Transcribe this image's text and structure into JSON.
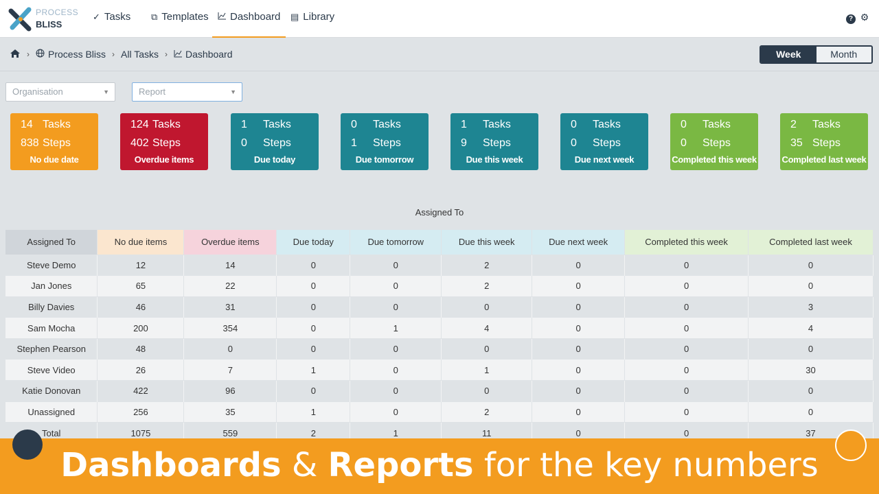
{
  "nav": {
    "logo": {
      "line1": "PROCESS",
      "line2": "BLISS"
    },
    "items": [
      {
        "icon": "checkmark-icon",
        "glyph": "✓",
        "label": "Tasks"
      },
      {
        "icon": "external-link-icon",
        "glyph": "⧉",
        "label": "Templates"
      },
      {
        "icon": "line-chart-icon",
        "glyph": "📈",
        "label": "Dashboard"
      },
      {
        "icon": "document-icon",
        "glyph": "▤",
        "label": "Library"
      }
    ]
  },
  "breadcrumb": [
    "Process Bliss",
    "All Tasks",
    "Dashboard"
  ],
  "period_toggle": {
    "week": "Week",
    "month": "Month",
    "selected": "Week"
  },
  "filters": {
    "organisation": "Organisation",
    "report": "Report"
  },
  "tiles": [
    {
      "tasks": "14",
      "steps": "838",
      "tasks_label": "Tasks",
      "steps_label": "Steps",
      "label": "No due date",
      "color": "#f39c1f"
    },
    {
      "tasks": "124",
      "steps": "402",
      "tasks_label": "Tasks",
      "steps_label": "Steps",
      "label": "Overdue items",
      "color": "#c0172f"
    },
    {
      "tasks": "1",
      "steps": "0",
      "tasks_label": "Tasks",
      "steps_label": "Steps",
      "label": "Due today",
      "color": "#1e8592"
    },
    {
      "tasks": "0",
      "steps": "1",
      "tasks_label": "Tasks",
      "steps_label": "Steps",
      "label": "Due tomorrow",
      "color": "#1e8592"
    },
    {
      "tasks": "1",
      "steps": "9",
      "tasks_label": "Tasks",
      "steps_label": "Steps",
      "label": "Due this week",
      "color": "#1e8592"
    },
    {
      "tasks": "0",
      "steps": "0",
      "tasks_label": "Tasks",
      "steps_label": "Steps",
      "label": "Due next week",
      "color": "#1e8592"
    },
    {
      "tasks": "0",
      "steps": "0",
      "tasks_label": "Tasks",
      "steps_label": "Steps",
      "label": "Completed this week",
      "color": "#7ab843"
    },
    {
      "tasks": "2",
      "steps": "35",
      "tasks_label": "Tasks",
      "steps_label": "Steps",
      "label": "Completed last week",
      "color": "#7ab843"
    }
  ],
  "table": {
    "title": "Assigned To",
    "columns": [
      {
        "label": "Assigned To",
        "bg": "#d0d5da"
      },
      {
        "label": "No due items",
        "bg": "#fbe6cf"
      },
      {
        "label": "Overdue items",
        "bg": "#f6d3dc"
      },
      {
        "label": "Due today",
        "bg": "#d5ecf2"
      },
      {
        "label": "Due tomorrow",
        "bg": "#d5ecf2"
      },
      {
        "label": "Due this week",
        "bg": "#d5ecf2"
      },
      {
        "label": "Due next week",
        "bg": "#d5ecf2"
      },
      {
        "label": "Completed this week",
        "bg": "#e2f1d6"
      },
      {
        "label": "Completed last week",
        "bg": "#e2f1d6"
      }
    ],
    "rows": [
      [
        "Steve Demo",
        "12",
        "14",
        "0",
        "0",
        "2",
        "0",
        "0",
        "0"
      ],
      [
        "Jan Jones",
        "65",
        "22",
        "0",
        "0",
        "2",
        "0",
        "0",
        "0"
      ],
      [
        "Billy Davies",
        "46",
        "31",
        "0",
        "0",
        "0",
        "0",
        "0",
        "3"
      ],
      [
        "Sam Mocha",
        "200",
        "354",
        "0",
        "1",
        "4",
        "0",
        "0",
        "4"
      ],
      [
        "Stephen Pearson",
        "48",
        "0",
        "0",
        "0",
        "0",
        "0",
        "0",
        "0"
      ],
      [
        "Steve Video",
        "26",
        "7",
        "1",
        "0",
        "1",
        "0",
        "0",
        "30"
      ],
      [
        "Katie Donovan",
        "422",
        "96",
        "0",
        "0",
        "0",
        "0",
        "0",
        "0"
      ],
      [
        "Unassigned",
        "256",
        "35",
        "1",
        "0",
        "2",
        "0",
        "0",
        "0"
      ],
      [
        "Total",
        "1075",
        "559",
        "2",
        "1",
        "11",
        "0",
        "0",
        "37"
      ]
    ]
  },
  "banner": {
    "part1": "Dashboards",
    "part2": " & ",
    "part3": "Reports",
    "part4": " for the key numbers"
  }
}
